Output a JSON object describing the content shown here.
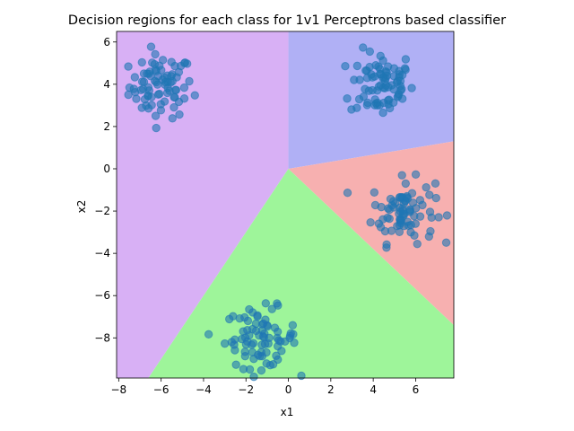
{
  "chart_data": {
    "type": "scatter",
    "title": "Decision regions for each class for 1v1 Perceptrons based classifier",
    "xlabel": "x1",
    "ylabel": "x2",
    "xlim": [
      -8.1,
      7.8
    ],
    "ylim": [
      -9.9,
      6.5
    ],
    "xticks": [
      -8,
      -6,
      -4,
      -2,
      0,
      2,
      4,
      6
    ],
    "yticks": [
      -8,
      -6,
      -4,
      -2,
      0,
      2,
      4,
      6
    ],
    "grid": false,
    "point_color": "#1f77b4",
    "point_alpha": 0.6,
    "regions": [
      {
        "color": "#d8b0f5",
        "vertices": [
          [
            -8.1,
            6.5
          ],
          [
            0,
            6.5
          ],
          [
            0,
            0
          ],
          [
            -6.6,
            -9.9
          ],
          [
            -8.1,
            -9.9
          ]
        ]
      },
      {
        "color": "#b0b0f5",
        "vertices": [
          [
            0,
            6.5
          ],
          [
            7.8,
            6.5
          ],
          [
            7.8,
            1.3
          ],
          [
            0,
            0
          ]
        ]
      },
      {
        "color": "#f7b0b0",
        "vertices": [
          [
            0,
            0
          ],
          [
            7.8,
            1.3
          ],
          [
            7.8,
            -7.4
          ]
        ]
      },
      {
        "color": "#9ef59a",
        "vertices": [
          [
            0,
            0
          ],
          [
            7.8,
            -7.4
          ],
          [
            7.8,
            -9.9
          ],
          [
            -6.6,
            -9.9
          ]
        ]
      }
    ],
    "clusters": [
      {
        "center": [
          -6.0,
          3.9
        ],
        "spread": [
          0.75,
          0.75
        ],
        "count": 80
      },
      {
        "center": [
          4.4,
          4.0
        ],
        "spread": [
          0.75,
          0.8
        ],
        "count": 80
      },
      {
        "center": [
          5.4,
          -2.0
        ],
        "spread": [
          0.75,
          0.75
        ],
        "count": 80
      },
      {
        "center": [
          -1.3,
          -8.0
        ],
        "spread": [
          0.85,
          0.7
        ],
        "count": 80
      }
    ]
  }
}
